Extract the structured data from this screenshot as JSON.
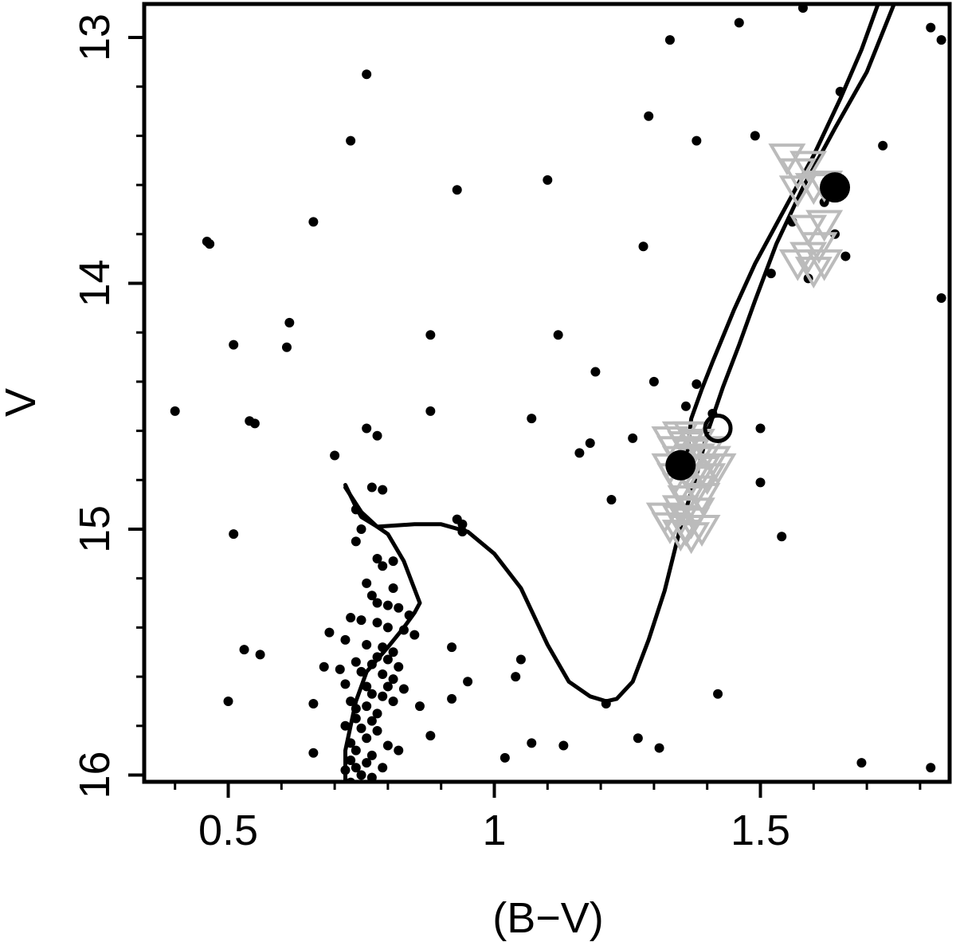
{
  "chart_data": {
    "type": "scatter",
    "title": "",
    "xlabel": "(B−V)",
    "ylabel": "V",
    "xlim": [
      0.35,
      1.85
    ],
    "ylim": [
      16.03,
      12.87
    ],
    "y_inverted": true,
    "x_ticks": [
      {
        "value": 0.5,
        "label": "0.5"
      },
      {
        "value": 1.0,
        "label": "1"
      },
      {
        "value": 1.5,
        "label": "1.5"
      }
    ],
    "x_minor_ticks": [
      0.4,
      0.6,
      0.7,
      0.8,
      0.9,
      1.1,
      1.2,
      1.3,
      1.4,
      1.6,
      1.7,
      1.8
    ],
    "y_ticks": [
      {
        "value": 13,
        "label": "13"
      },
      {
        "value": 14,
        "label": "14"
      },
      {
        "value": 15,
        "label": "15"
      },
      {
        "value": 16,
        "label": "16"
      }
    ],
    "y_minor_ticks": [
      13.2,
      13.4,
      13.6,
      13.8,
      14.2,
      14.4,
      14.6,
      14.8,
      15.2,
      15.4,
      15.6,
      15.8
    ],
    "colors": {
      "points": "#000000",
      "isochrone": "#000000",
      "triangles": "#bbbbbb",
      "frame": "#000000"
    },
    "series": [
      {
        "marker": "dot",
        "points": [
          [
            0.4,
            14.52
          ],
          [
            0.46,
            13.83
          ],
          [
            0.465,
            13.84
          ],
          [
            0.51,
            14.25
          ],
          [
            0.54,
            14.56
          ],
          [
            0.55,
            14.57
          ],
          [
            0.61,
            14.26
          ],
          [
            0.615,
            14.16
          ],
          [
            0.66,
            13.75
          ],
          [
            0.73,
            13.42
          ],
          [
            0.76,
            13.15
          ],
          [
            0.93,
            13.62
          ],
          [
            0.88,
            14.21
          ],
          [
            0.88,
            14.52
          ],
          [
            0.76,
            14.59
          ],
          [
            0.78,
            14.62
          ],
          [
            0.7,
            14.7
          ],
          [
            0.77,
            14.83
          ],
          [
            0.79,
            14.84
          ],
          [
            0.74,
            14.92
          ],
          [
            0.75,
            15.0
          ],
          [
            0.74,
            15.05
          ],
          [
            0.51,
            15.02
          ],
          [
            0.93,
            14.96
          ],
          [
            0.94,
            14.98
          ],
          [
            0.94,
            15.01
          ],
          [
            0.78,
            15.12
          ],
          [
            0.81,
            15.13
          ],
          [
            0.79,
            15.15
          ],
          [
            0.76,
            15.22
          ],
          [
            0.81,
            15.24
          ],
          [
            0.77,
            15.27
          ],
          [
            0.78,
            15.3
          ],
          [
            0.8,
            15.31
          ],
          [
            0.82,
            15.32
          ],
          [
            0.84,
            15.35
          ],
          [
            0.73,
            15.36
          ],
          [
            0.75,
            15.37
          ],
          [
            0.78,
            15.38
          ],
          [
            0.8,
            15.4
          ],
          [
            0.83,
            15.41
          ],
          [
            0.85,
            15.43
          ],
          [
            0.69,
            15.42
          ],
          [
            0.72,
            15.45
          ],
          [
            0.76,
            15.47
          ],
          [
            0.79,
            15.48
          ],
          [
            0.81,
            15.5
          ],
          [
            0.53,
            15.49
          ],
          [
            0.56,
            15.51
          ],
          [
            0.78,
            15.52
          ],
          [
            0.8,
            15.53
          ],
          [
            0.74,
            15.54
          ],
          [
            0.77,
            15.55
          ],
          [
            0.82,
            15.56
          ],
          [
            0.68,
            15.56
          ],
          [
            0.71,
            15.57
          ],
          [
            0.75,
            15.58
          ],
          [
            0.79,
            15.59
          ],
          [
            0.81,
            15.61
          ],
          [
            0.72,
            15.63
          ],
          [
            0.76,
            15.64
          ],
          [
            0.8,
            15.64
          ],
          [
            0.83,
            15.65
          ],
          [
            0.77,
            15.67
          ],
          [
            0.79,
            15.68
          ],
          [
            0.81,
            15.7
          ],
          [
            0.73,
            15.7
          ],
          [
            0.76,
            15.72
          ],
          [
            0.74,
            15.73
          ],
          [
            0.78,
            15.75
          ],
          [
            0.66,
            15.71
          ],
          [
            0.5,
            15.7
          ],
          [
            0.86,
            15.72
          ],
          [
            0.74,
            15.77
          ],
          [
            0.77,
            15.78
          ],
          [
            0.72,
            15.8
          ],
          [
            0.75,
            15.81
          ],
          [
            0.78,
            15.82
          ],
          [
            0.76,
            15.85
          ],
          [
            0.73,
            15.87
          ],
          [
            0.8,
            15.88
          ],
          [
            0.82,
            15.9
          ],
          [
            0.74,
            15.9
          ],
          [
            0.77,
            15.92
          ],
          [
            0.73,
            15.94
          ],
          [
            0.76,
            15.95
          ],
          [
            0.79,
            15.97
          ],
          [
            0.74,
            15.97
          ],
          [
            0.72,
            15.98
          ],
          [
            0.75,
            16.0
          ],
          [
            0.77,
            16.01
          ],
          [
            0.73,
            16.03
          ],
          [
            0.75,
            16.04
          ],
          [
            0.82,
            16.06
          ],
          [
            0.85,
            16.05
          ],
          [
            0.66,
            15.91
          ],
          [
            0.57,
            16.04
          ],
          [
            0.92,
            15.48
          ],
          [
            0.95,
            15.62
          ],
          [
            0.92,
            15.69
          ],
          [
            0.88,
            15.84
          ],
          [
            1.05,
            15.53
          ],
          [
            1.04,
            15.6
          ],
          [
            1.07,
            15.87
          ],
          [
            1.02,
            15.93
          ],
          [
            1.13,
            15.88
          ],
          [
            1.21,
            15.71
          ],
          [
            1.27,
            15.85
          ],
          [
            1.31,
            15.89
          ],
          [
            1.42,
            15.67
          ],
          [
            1.69,
            15.95
          ],
          [
            1.82,
            15.97
          ],
          [
            1.74,
            16.08
          ],
          [
            1.1,
            13.58
          ],
          [
            1.07,
            14.55
          ],
          [
            1.19,
            14.36
          ],
          [
            1.18,
            14.65
          ],
          [
            1.16,
            14.69
          ],
          [
            1.12,
            14.21
          ],
          [
            1.22,
            14.88
          ],
          [
            1.26,
            14.63
          ],
          [
            1.3,
            14.4
          ],
          [
            1.38,
            14.41
          ],
          [
            1.36,
            14.5
          ],
          [
            1.41,
            14.53
          ],
          [
            1.5,
            14.59
          ],
          [
            1.5,
            14.81
          ],
          [
            1.54,
            15.03
          ],
          [
            1.28,
            13.85
          ],
          [
            1.29,
            13.32
          ],
          [
            1.33,
            13.01
          ],
          [
            1.38,
            13.42
          ],
          [
            1.46,
            12.94
          ],
          [
            1.49,
            13.4
          ],
          [
            1.58,
            12.88
          ],
          [
            1.65,
            13.22
          ],
          [
            1.73,
            13.44
          ],
          [
            1.82,
            12.96
          ],
          [
            1.84,
            13.01
          ],
          [
            1.84,
            14.06
          ],
          [
            1.56,
            13.75
          ],
          [
            1.59,
            13.98
          ],
          [
            1.62,
            13.67
          ],
          [
            1.64,
            13.8
          ],
          [
            1.66,
            13.89
          ],
          [
            1.52,
            13.96
          ]
        ]
      },
      {
        "marker": "isochrone",
        "points": [
          [
            0.72,
            14.82
          ],
          [
            0.74,
            14.91
          ],
          [
            0.75,
            14.95
          ],
          [
            0.78,
            14.99
          ],
          [
            0.8,
            15.02
          ],
          [
            0.83,
            15.13
          ],
          [
            0.86,
            15.3
          ],
          [
            0.85,
            15.34
          ],
          [
            0.83,
            15.4
          ],
          [
            0.8,
            15.48
          ],
          [
            0.76,
            15.58
          ],
          [
            0.74,
            15.7
          ],
          [
            0.73,
            15.8
          ],
          [
            0.72,
            15.9
          ],
          [
            0.72,
            16.03
          ]
        ]
      },
      {
        "marker": "isochrone",
        "points": [
          [
            0.72,
            14.83
          ],
          [
            0.75,
            14.93
          ],
          [
            0.78,
            14.99
          ],
          [
            0.85,
            14.98
          ],
          [
            0.9,
            14.98
          ],
          [
            0.95,
            15.01
          ],
          [
            1.0,
            15.1
          ],
          [
            1.05,
            15.24
          ],
          [
            1.1,
            15.47
          ],
          [
            1.14,
            15.62
          ],
          [
            1.18,
            15.68
          ],
          [
            1.21,
            15.7
          ],
          [
            1.23,
            15.69
          ],
          [
            1.26,
            15.62
          ],
          [
            1.29,
            15.45
          ],
          [
            1.32,
            15.25
          ],
          [
            1.35,
            14.99
          ],
          [
            1.38,
            14.78
          ],
          [
            1.4,
            14.61
          ],
          [
            1.43,
            14.42
          ],
          [
            1.46,
            14.25
          ],
          [
            1.49,
            14.07
          ],
          [
            1.53,
            13.84
          ],
          [
            1.58,
            13.61
          ],
          [
            1.64,
            13.37
          ],
          [
            1.7,
            13.14
          ],
          [
            1.75,
            12.87
          ]
        ]
      },
      {
        "marker": "isochrone",
        "points": [
          [
            1.36,
            14.74
          ],
          [
            1.37,
            14.55
          ],
          [
            1.39,
            14.43
          ],
          [
            1.41,
            14.32
          ],
          [
            1.45,
            14.11
          ],
          [
            1.49,
            13.92
          ],
          [
            1.54,
            13.72
          ],
          [
            1.6,
            13.48
          ],
          [
            1.65,
            13.25
          ],
          [
            1.69,
            13.05
          ],
          [
            1.72,
            12.87
          ]
        ]
      },
      {
        "marker": "triangle",
        "points": [
          [
            1.35,
            14.62
          ],
          [
            1.37,
            14.62
          ],
          [
            1.33,
            14.64
          ],
          [
            1.36,
            14.66
          ],
          [
            1.38,
            14.65
          ],
          [
            1.34,
            14.68
          ],
          [
            1.37,
            14.69
          ],
          [
            1.4,
            14.68
          ],
          [
            1.35,
            14.72
          ],
          [
            1.38,
            14.71
          ],
          [
            1.41,
            14.72
          ],
          [
            1.33,
            14.75
          ],
          [
            1.36,
            14.76
          ],
          [
            1.39,
            14.76
          ],
          [
            1.42,
            14.75
          ],
          [
            1.34,
            14.79
          ],
          [
            1.37,
            14.8
          ],
          [
            1.4,
            14.79
          ],
          [
            1.35,
            14.83
          ],
          [
            1.38,
            14.84
          ],
          [
            1.36,
            14.88
          ],
          [
            1.39,
            14.87
          ],
          [
            1.35,
            14.92
          ],
          [
            1.38,
            14.93
          ],
          [
            1.32,
            14.95
          ],
          [
            1.35,
            14.96
          ],
          [
            1.37,
            14.97
          ],
          [
            1.33,
            14.99
          ],
          [
            1.36,
            15.0
          ],
          [
            1.39,
            15.0
          ],
          [
            1.35,
            15.02
          ],
          [
            1.37,
            15.03
          ],
          [
            1.55,
            13.49
          ],
          [
            1.57,
            13.55
          ],
          [
            1.59,
            13.52
          ],
          [
            1.57,
            13.62
          ],
          [
            1.6,
            13.61
          ],
          [
            1.62,
            13.6
          ],
          [
            1.59,
            13.78
          ],
          [
            1.62,
            13.76
          ],
          [
            1.61,
            13.85
          ],
          [
            1.59,
            13.89
          ],
          [
            1.57,
            13.92
          ],
          [
            1.6,
            13.95
          ],
          [
            1.62,
            13.92
          ]
        ]
      },
      {
        "marker": "big-dot",
        "points": [
          [
            1.35,
            14.74
          ],
          [
            1.64,
            13.61
          ]
        ]
      },
      {
        "marker": "open-circle",
        "points": [
          [
            1.42,
            14.59
          ]
        ]
      }
    ]
  }
}
